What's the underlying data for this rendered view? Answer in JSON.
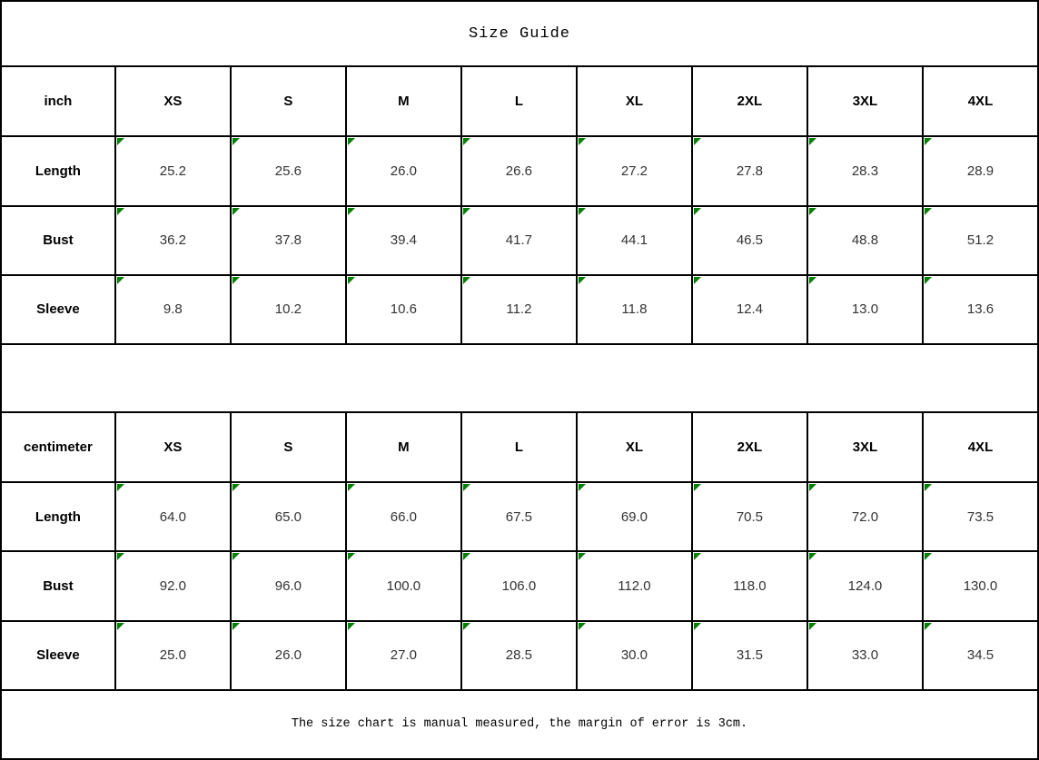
{
  "title": "Size Guide",
  "footer_note": "The size chart is manual measured, the margin of error is 3cm.",
  "size_columns": [
    "XS",
    "S",
    "M",
    "L",
    "XL",
    "2XL",
    "3XL",
    "4XL"
  ],
  "tables": [
    {
      "unit_label": "inch",
      "rows": [
        {
          "label": "Length",
          "values": [
            "25.2",
            "25.6",
            "26.0",
            "26.6",
            "27.2",
            "27.8",
            "28.3",
            "28.9"
          ]
        },
        {
          "label": "Bust",
          "values": [
            "36.2",
            "37.8",
            "39.4",
            "41.7",
            "44.1",
            "46.5",
            "48.8",
            "51.2"
          ]
        },
        {
          "label": "Sleeve",
          "values": [
            "9.8",
            "10.2",
            "10.6",
            "11.2",
            "11.8",
            "12.4",
            "13.0",
            "13.6"
          ]
        }
      ]
    },
    {
      "unit_label": "centimeter",
      "rows": [
        {
          "label": "Length",
          "values": [
            "64.0",
            "65.0",
            "66.0",
            "67.5",
            "69.0",
            "70.5",
            "72.0",
            "73.5"
          ]
        },
        {
          "label": "Bust",
          "values": [
            "92.0",
            "96.0",
            "100.0",
            "106.0",
            "112.0",
            "118.0",
            "124.0",
            "130.0"
          ]
        },
        {
          "label": "Sleeve",
          "values": [
            "25.0",
            "26.0",
            "27.0",
            "28.5",
            "30.0",
            "31.5",
            "33.0",
            "34.5"
          ]
        }
      ]
    }
  ],
  "colors": {
    "background": "#ffffff",
    "border": "#000000",
    "text": "#000000",
    "flag_green": "#008000"
  }
}
